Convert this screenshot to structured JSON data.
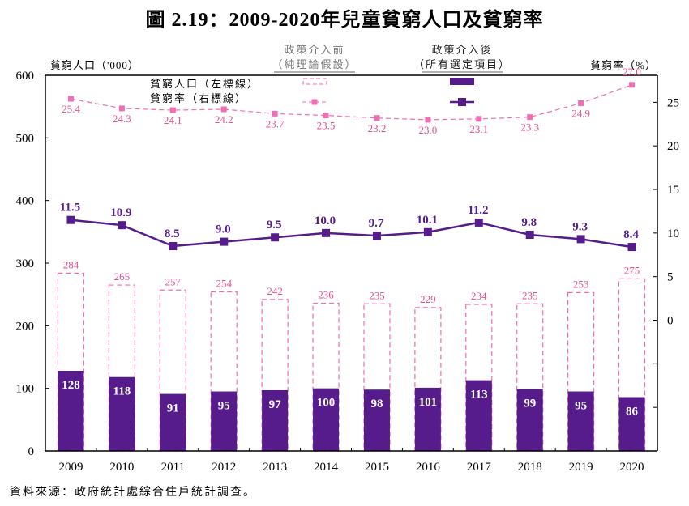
{
  "title": "圖 2.19：2009-2020年兒童貧窮人口及貧窮率",
  "source_note": "資料來源：政府統計處綜合住戶統計調查。",
  "colors": {
    "before_policy": "#f06eb4",
    "before_label": "#e8508f",
    "after_policy": "#561c8c",
    "axis": "#000000",
    "legend_underline": "#999999"
  },
  "chart_data": {
    "type": "bar",
    "title": "圖 2.19：2009-2020年兒童貧窮人口及貧窮率",
    "categories": [
      "2009",
      "2010",
      "2011",
      "2012",
      "2013",
      "2014",
      "2015",
      "2016",
      "2017",
      "2018",
      "2019",
      "2020"
    ],
    "left_axis": {
      "label": "貧窮人口（'000）",
      "range": [
        0,
        600
      ],
      "ticks": [
        0,
        100,
        200,
        300,
        400,
        500,
        600
      ]
    },
    "right_axis": {
      "label": "貧窮率（%）",
      "range": [
        -15,
        28.1
      ],
      "ticks": [
        0,
        5,
        10,
        15,
        20,
        25
      ],
      "minor_ticks": [
        -5,
        -10
      ]
    },
    "legend": {
      "placement": "top-center",
      "column_headers": [
        {
          "line1": "政策介入前",
          "line2": "（純理論假設）"
        },
        {
          "line1": "政策介入後",
          "line2": "（所有選定項目）"
        }
      ],
      "rows": [
        "貧窮人口（左標線）",
        "貧窮率（右標線）"
      ]
    },
    "series": [
      {
        "name": "貧窮人口 — 政策介入前（純理論假設）",
        "type": "bar",
        "style": "dashed-outline",
        "axis": "left",
        "values": [
          284,
          265,
          257,
          254,
          242,
          236,
          235,
          229,
          234,
          235,
          253,
          275
        ]
      },
      {
        "name": "貧窮人口 — 政策介入後（所有選定項目）",
        "type": "bar",
        "style": "solid",
        "axis": "left",
        "values": [
          128,
          118,
          91,
          95,
          97,
          100,
          98,
          101,
          113,
          99,
          95,
          86
        ]
      },
      {
        "name": "貧窮率 — 政策介入前（純理論假設）",
        "type": "line",
        "style": "dashed",
        "axis": "right",
        "values": [
          25.4,
          24.3,
          24.1,
          24.2,
          23.7,
          23.5,
          23.2,
          23.0,
          23.1,
          23.3,
          24.9,
          27.0
        ]
      },
      {
        "name": "貧窮率 — 政策介入後（所有選定項目）",
        "type": "line",
        "style": "solid",
        "axis": "right",
        "values": [
          11.5,
          10.9,
          8.5,
          9.0,
          9.5,
          10.0,
          9.7,
          10.1,
          11.2,
          9.8,
          9.3,
          8.4
        ]
      }
    ],
    "grid": false
  }
}
